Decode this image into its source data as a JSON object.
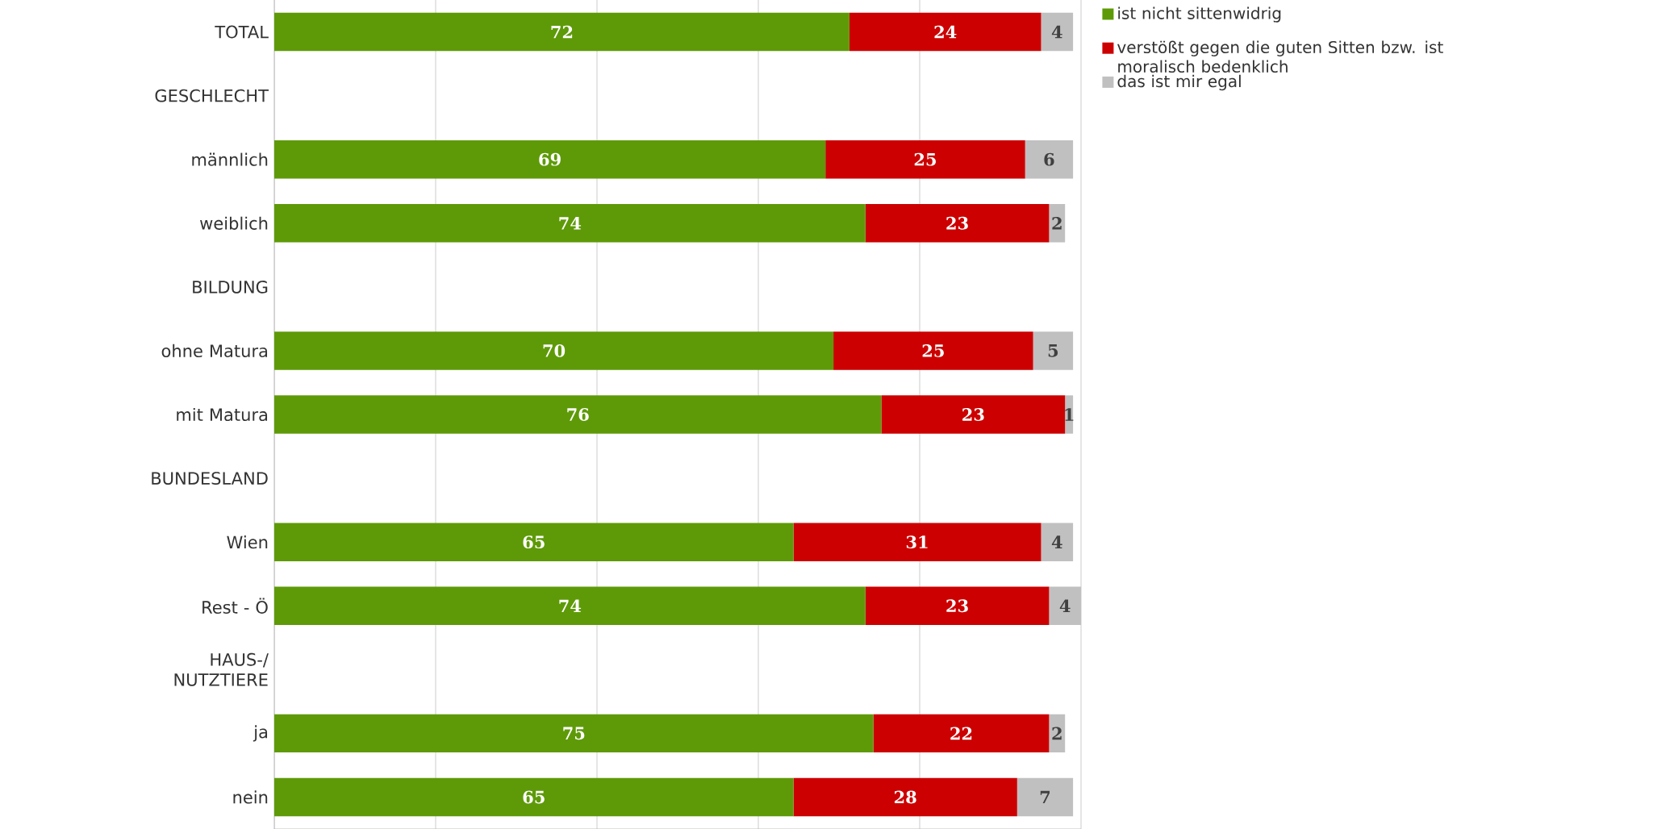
{
  "chart_data": {
    "type": "bar",
    "orientation": "horizontal",
    "stacked": true,
    "grid": "x",
    "legend": "top right",
    "tick_labels": "y",
    "data_labels": true,
    "categories": [
      "TOTAL",
      "GESCHLECHT",
      "männlich",
      "weiblich",
      "BILDUNG",
      "ohne Matura",
      "mit Matura",
      "BUNDESLAND",
      "Wien",
      "Rest - Ö",
      "HAUS-/ NUTZTIERE",
      "ja",
      "nein"
    ],
    "series": [
      {
        "name": "ist nicht sittenwidrig",
        "color": "#5e9a08",
        "values": [
          72,
          null,
          69,
          74,
          null,
          70,
          76,
          null,
          65,
          74,
          null,
          75,
          65
        ]
      },
      {
        "name": "verstößt gegen die guten Sitten bzw. ist moralisch bedenklich",
        "color": "#cc0000",
        "values": [
          24,
          null,
          25,
          23,
          null,
          25,
          23,
          null,
          31,
          23,
          null,
          22,
          28
        ]
      },
      {
        "name": "das ist mir egal",
        "color": "#c0c0c0",
        "values": [
          4,
          null,
          6,
          2,
          null,
          5,
          1,
          null,
          4,
          4,
          null,
          2,
          7
        ]
      }
    ]
  }
}
